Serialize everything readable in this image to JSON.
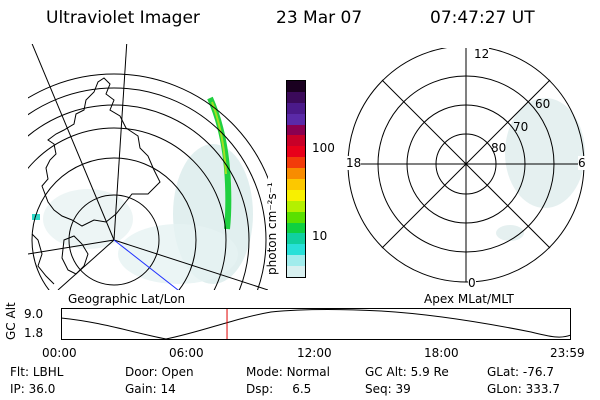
{
  "header": {
    "instrument": "Ultraviolet Imager",
    "date": "23 Mar 07",
    "time": "07:47:27 UT"
  },
  "colorbar": {
    "ticks": [
      "100",
      "10"
    ],
    "unit_label": "photon cm⁻²s⁻¹",
    "colors": [
      "#1a0020",
      "#3b0a5a",
      "#4b1a8a",
      "#5a2aa8",
      "#8a0050",
      "#c80028",
      "#e8001a",
      "#f23c0a",
      "#f88c00",
      "#fcc800",
      "#f8f000",
      "#b4f000",
      "#5ae000",
      "#10d040",
      "#10d0a0",
      "#28e0d8",
      "#a0ecec",
      "#d8f0f0"
    ]
  },
  "maps": {
    "left_label": "Geographic Lat/Lon",
    "right_label": "Apex MLat/MLT",
    "polar": {
      "mlt_labels": {
        "top": "12",
        "right": "6",
        "bottom": "0",
        "left": "18"
      },
      "lat_labels": [
        "60",
        "70",
        "80"
      ]
    }
  },
  "timeline": {
    "ylabel": "GC Alt",
    "y_ticks": [
      "9.0",
      "1.8"
    ],
    "x_ticks": [
      "00:00",
      "06:00",
      "12:00",
      "18:00",
      "23:59"
    ],
    "current_time": "07:47:27",
    "current_marker_color": "#e00000"
  },
  "footer": {
    "row1": [
      {
        "label": "Flt:",
        "value": "LBHL"
      },
      {
        "label": "Door:",
        "value": "Open"
      },
      {
        "label": "Mode:",
        "value": "Normal"
      },
      {
        "label": "GC Alt:",
        "value": "5.9 Re"
      },
      {
        "label": "GLat:",
        "value": "-76.7"
      }
    ],
    "row2": [
      {
        "label": "IP:",
        "value": "36.0"
      },
      {
        "label": "Gain:",
        "value": "14"
      },
      {
        "label": "Dsp:",
        "value": "6.5"
      },
      {
        "label": "Seq:",
        "value": "39"
      },
      {
        "label": "GLon:",
        "value": "333.7"
      }
    ]
  }
}
